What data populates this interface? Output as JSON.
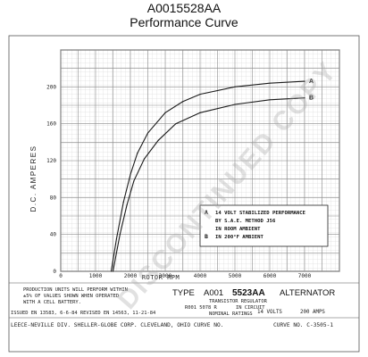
{
  "header": {
    "part_number": "A0015528AA",
    "subtitle": "Performance Curve"
  },
  "watermark": "DISCONTINUED COPY",
  "chart_data": {
    "type": "line",
    "xlabel": "ROTOR RPM",
    "ylabel": "D.C. AMPERES",
    "xlim": [
      0,
      8000
    ],
    "ylim": [
      0,
      240
    ],
    "grid": true,
    "x_ticks": [
      "0",
      "1000",
      "2000",
      "3000",
      "4000",
      "5000",
      "6000",
      "7000"
    ],
    "y_ticks": [
      "0",
      "40",
      "80",
      "120",
      "160",
      "200"
    ],
    "series": [
      {
        "name": "A",
        "points": [
          [
            1450,
            0
          ],
          [
            1600,
            35
          ],
          [
            1800,
            75
          ],
          [
            2000,
            105
          ],
          [
            2200,
            128
          ],
          [
            2500,
            150
          ],
          [
            3000,
            172
          ],
          [
            3500,
            184
          ],
          [
            4000,
            192
          ],
          [
            5000,
            200
          ],
          [
            6000,
            204
          ],
          [
            7000,
            206
          ]
        ]
      },
      {
        "name": "B",
        "points": [
          [
            1500,
            0
          ],
          [
            1700,
            40
          ],
          [
            1900,
            72
          ],
          [
            2100,
            98
          ],
          [
            2400,
            122
          ],
          [
            2800,
            142
          ],
          [
            3300,
            160
          ],
          [
            4000,
            172
          ],
          [
            5000,
            181
          ],
          [
            6000,
            186
          ],
          [
            7000,
            188
          ]
        ]
      }
    ],
    "legend": {
      "items": [
        {
          "key": "A",
          "lines": [
            "14 VOLT STABILIZED PERFORMANCE",
            "BY S.A.E. METHOD J56",
            "IN ROOM AMBIENT"
          ]
        },
        {
          "key": "B",
          "lines": [
            "IN 200°F AMBIENT"
          ]
        }
      ]
    }
  },
  "notes": {
    "production_note": [
      "PRODUCTION UNITS WILL PERFORM WITHIN",
      "±5% OF VALUES SHOWN WHEN OPERATED",
      "WITH A  CELL BATTERY."
    ],
    "issued": "ISSUED EN 13583, 6-6-84  REVISED EN 14563, 11-21-84",
    "company": "LEECE-NEVILLE DIV. SHELLER-GLOBE CORP. CLEVELAND, OHIO   CURVE NO."
  },
  "title_block": {
    "type_prefix": "TYPE",
    "type_code": "A001",
    "model": "5523AA",
    "product": "ALTERNATOR",
    "regulator_line": "TRANSISTOR  REGULATOR",
    "regulator_model": "R001 5078 R",
    "in_circuit": "IN CIRCUIT",
    "nominal_ratings": "NOMINAL RATINGS",
    "volts": "14 VOLTS",
    "amps": "200 AMPS",
    "curve_no": "CURVE NO. C-3505-1"
  }
}
